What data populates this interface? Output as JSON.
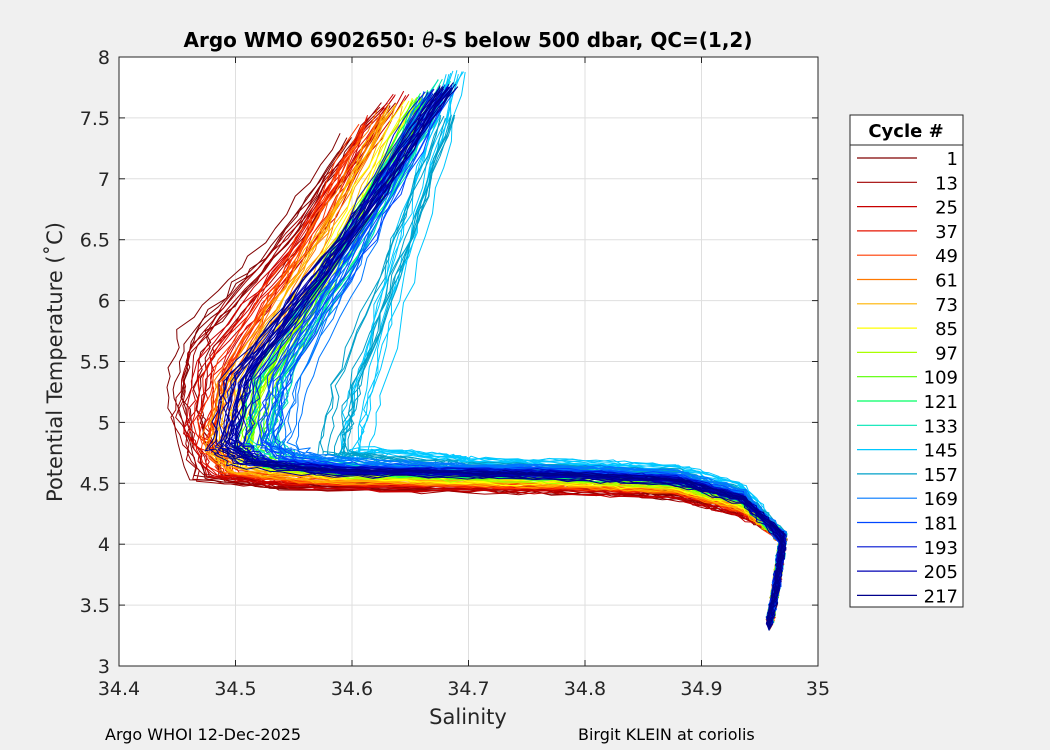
{
  "chart_data": {
    "type": "line",
    "title_prefix": "Argo WMO 6902650: ",
    "title_theta": "θ",
    "title_suffix": "-S below 500 dbar,  QC=(1,2)",
    "xlabel": "Salinity",
    "ylabel": "Potential Temperature (˚C)",
    "xlim": [
      34.4,
      35
    ],
    "ylim": [
      3,
      8
    ],
    "xticks": [
      34.4,
      34.5,
      34.6,
      34.7,
      34.8,
      34.9,
      35
    ],
    "xtick_labels": [
      "34.4",
      "34.5",
      "34.6",
      "34.7",
      "34.8",
      "34.9",
      "35"
    ],
    "yticks": [
      3,
      3.5,
      4,
      4.5,
      5,
      5.5,
      6,
      6.5,
      7,
      7.5,
      8
    ],
    "ytick_labels": [
      "3",
      "3.5",
      "4",
      "4.5",
      "5",
      "5.5",
      "6",
      "6.5",
      "7",
      "7.5",
      "8"
    ],
    "grid": true,
    "legend_title": "Cycle #",
    "legend_position": "outside-right",
    "series": [
      {
        "name": "1",
        "color": "#800000",
        "start": [
          34.6,
          7.35
        ],
        "turn": [
          34.455,
          5.2
        ],
        "shelf_t": 4.43
      },
      {
        "name": "13",
        "color": "#a00000",
        "start": [
          34.63,
          7.6
        ],
        "turn": [
          34.46,
          5.05
        ],
        "shelf_t": 4.42
      },
      {
        "name": "25",
        "color": "#c80000",
        "start": [
          34.64,
          7.7
        ],
        "turn": [
          34.465,
          4.95
        ],
        "shelf_t": 4.43
      },
      {
        "name": "37",
        "color": "#e61400",
        "start": [
          34.62,
          7.5
        ],
        "turn": [
          34.47,
          4.9
        ],
        "shelf_t": 4.45
      },
      {
        "name": "49",
        "color": "#ff3c00",
        "start": [
          34.61,
          7.45
        ],
        "turn": [
          34.475,
          4.85
        ],
        "shelf_t": 4.46
      },
      {
        "name": "61",
        "color": "#ff7800",
        "start": [
          34.63,
          7.55
        ],
        "turn": [
          34.485,
          4.8
        ],
        "shelf_t": 4.48
      },
      {
        "name": "73",
        "color": "#ffb400",
        "start": [
          34.64,
          7.6
        ],
        "turn": [
          34.49,
          4.75
        ],
        "shelf_t": 4.49
      },
      {
        "name": "85",
        "color": "#ffff00",
        "start": [
          34.65,
          7.65
        ],
        "turn": [
          34.5,
          4.7
        ],
        "shelf_t": 4.5
      },
      {
        "name": "97",
        "color": "#aaff00",
        "start": [
          34.66,
          7.68
        ],
        "turn": [
          34.505,
          4.72
        ],
        "shelf_t": 4.52
      },
      {
        "name": "109",
        "color": "#55ff00",
        "start": [
          34.66,
          7.65
        ],
        "turn": [
          34.51,
          4.75
        ],
        "shelf_t": 4.53
      },
      {
        "name": "121",
        "color": "#00ff64",
        "start": [
          34.67,
          7.7
        ],
        "turn": [
          34.515,
          4.8
        ],
        "shelf_t": 4.55
      },
      {
        "name": "133",
        "color": "#00e6b4",
        "start": [
          34.68,
          7.8
        ],
        "turn": [
          34.525,
          4.85
        ],
        "shelf_t": 4.57
      },
      {
        "name": "145",
        "color": "#00c8ff",
        "start": [
          34.69,
          7.88
        ],
        "turn": [
          34.6,
          4.7
        ],
        "shelf_t": 4.66
      },
      {
        "name": "157",
        "color": "#00a0c8",
        "start": [
          34.68,
          7.52
        ],
        "turn": [
          34.58,
          4.75
        ],
        "shelf_t": 4.62
      },
      {
        "name": "169",
        "color": "#0078ff",
        "start": [
          34.67,
          7.7
        ],
        "turn": [
          34.54,
          4.8
        ],
        "shelf_t": 4.6
      },
      {
        "name": "181",
        "color": "#0046ff",
        "start": [
          34.68,
          7.75
        ],
        "turn": [
          34.52,
          4.85
        ],
        "shelf_t": 4.58
      },
      {
        "name": "193",
        "color": "#0014d2",
        "start": [
          34.67,
          7.72
        ],
        "turn": [
          34.5,
          4.8
        ],
        "shelf_t": 4.56
      },
      {
        "name": "205",
        "color": "#0000b4",
        "start": [
          34.68,
          7.76
        ],
        "turn": [
          34.49,
          4.85
        ],
        "shelf_t": 4.55
      },
      {
        "name": "217",
        "color": "#00008c",
        "start": [
          34.68,
          7.76
        ],
        "turn": [
          34.485,
          4.8
        ],
        "shelf_t": 4.54
      }
    ]
  },
  "footer": {
    "left": "Argo WHOI 12-Dec-2025",
    "right": "Birgit KLEIN at coriolis"
  }
}
